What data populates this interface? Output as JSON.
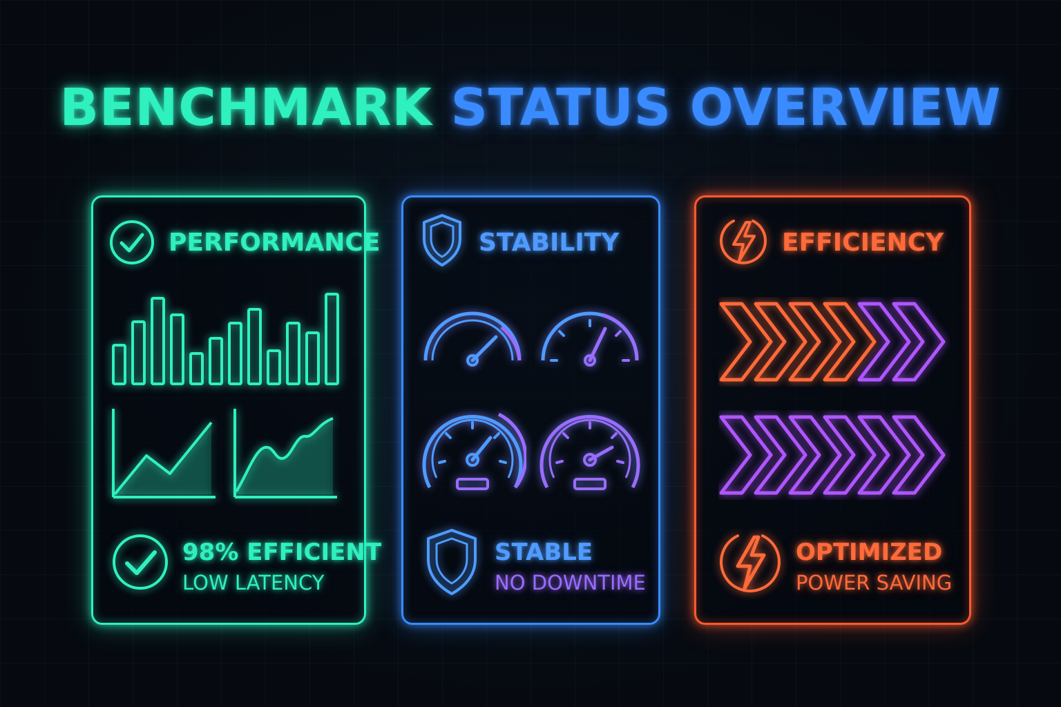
{
  "header": {
    "title_part1": "BENCHMARK",
    "title_part2": "STATUS OVERVIEW"
  },
  "panels": [
    {
      "title": "PERFORMANCE",
      "headline": "98% EFFICIENT",
      "detail": "LOW LATENCY",
      "icon": "check-circle-icon",
      "color": "#2ff0bf"
    },
    {
      "title": "STABILITY",
      "headline": "STABLE",
      "detail": "NO DOWNTIME",
      "icon": "shield-icon",
      "color": "#3a8bff"
    },
    {
      "title": "EFFICIENCY",
      "headline": "OPTIMIZED",
      "detail": "POWER SAVING",
      "icon": "lightning-bolt-icon",
      "color": "#ff5a30"
    }
  ],
  "colors": {
    "background": "#060a10",
    "teal": "#2ff0bf",
    "blue": "#3a8bff",
    "purple": "#9a6cff",
    "orange": "#ff5a30"
  }
}
